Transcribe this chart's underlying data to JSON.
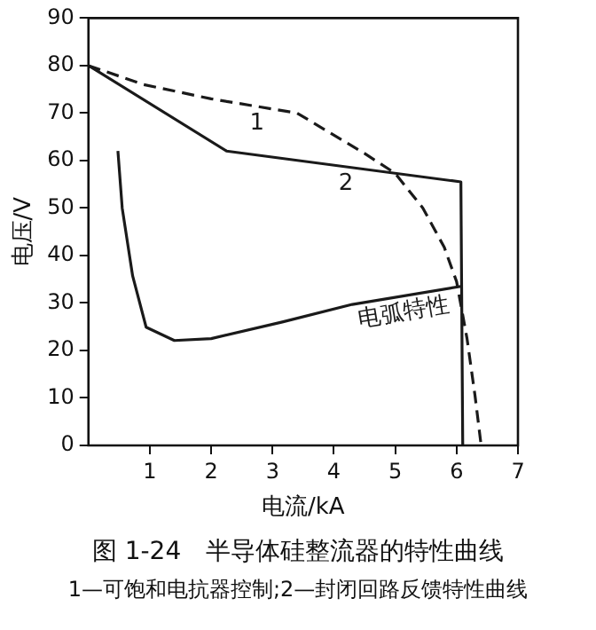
{
  "chart_data": {
    "type": "line",
    "title": "图 1-24　半导体硅整流器的特性曲线",
    "subtitle": "1—可饱和电抗器控制;2—封闭回路反馈特性曲线",
    "xlabel": "电流/kA",
    "ylabel": "电压/V",
    "xlim": [
      0,
      7
    ],
    "xticks": [
      1,
      2,
      3,
      4,
      5,
      6,
      7
    ],
    "ylim": [
      0,
      90
    ],
    "yticks": [
      0,
      10,
      20,
      30,
      40,
      50,
      60,
      70,
      80,
      90
    ],
    "grid": false,
    "legend": false,
    "marker": "none",
    "series": [
      {
        "name": "1",
        "color": "#1a1a1a",
        "line_style": "dashed",
        "x": [
          0,
          0.9,
          2.0,
          3.4,
          4.5,
          5.0,
          5.45,
          5.8,
          6.0,
          6.17,
          6.3,
          6.4
        ],
        "values": [
          80,
          76,
          73,
          70,
          61.5,
          57.3,
          50,
          41.7,
          34.5,
          22.5,
          10.5,
          0
        ]
      },
      {
        "name": "2",
        "color": "#1a1a1a",
        "line_style": "solid",
        "x": [
          0,
          2.25,
          6.07,
          6.1
        ],
        "values": [
          80,
          62,
          55.5,
          0
        ]
      },
      {
        "name": "电弧特性",
        "color": "#1a1a1a",
        "line_style": "solid",
        "x": [
          0.48,
          0.55,
          0.72,
          0.94,
          1.4,
          2.0,
          3.16,
          4.3,
          6.07
        ],
        "values": [
          62,
          50,
          35.7,
          24.9,
          22.1,
          22.5,
          26,
          29.7,
          33.5
        ]
      }
    ]
  }
}
